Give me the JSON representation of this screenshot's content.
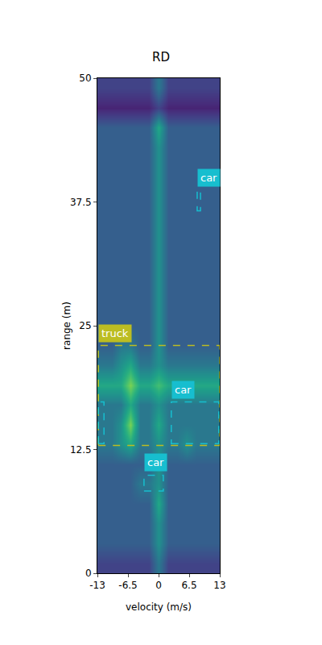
{
  "chart_data": {
    "type": "heatmap",
    "title": "RD",
    "x_label": "velocity (m/s)",
    "y_label": "range (m)",
    "xlim": [
      -13,
      13
    ],
    "ylim": [
      0,
      50
    ],
    "xticks": [
      -13,
      -6.5,
      0,
      6.5,
      13
    ],
    "yticks": [
      0,
      12.5,
      25,
      37.5,
      50
    ],
    "grid": false,
    "zlim": [
      0,
      10
    ],
    "x": [
      -12,
      -10,
      -8,
      -6,
      -4,
      -2,
      0,
      2,
      4,
      6,
      8,
      10,
      12
    ],
    "y": [
      1,
      3,
      5,
      7,
      9,
      11,
      13,
      15,
      17,
      19,
      21,
      23,
      25,
      27,
      29,
      31,
      33,
      35,
      37,
      39,
      41,
      43,
      45,
      47,
      49
    ],
    "z": [
      [
        2,
        2,
        2,
        2,
        2,
        2,
        4,
        2,
        2,
        2,
        2,
        2,
        2
      ],
      [
        3,
        3,
        3,
        3,
        3,
        3,
        5,
        3,
        3,
        3,
        3,
        3,
        3
      ],
      [
        3,
        3,
        3,
        3,
        3,
        3,
        5,
        3,
        3,
        3,
        3,
        3,
        3
      ],
      [
        3,
        3,
        3,
        3,
        3,
        3,
        6,
        3,
        3,
        3,
        3,
        3,
        3
      ],
      [
        3,
        3,
        3,
        3,
        4,
        4,
        5,
        3,
        3,
        3,
        3,
        3,
        3
      ],
      [
        3,
        3,
        3,
        3,
        3,
        3,
        5,
        3,
        3,
        3,
        3,
        3,
        3
      ],
      [
        4,
        4,
        5,
        6,
        4,
        4,
        5,
        4,
        4,
        5,
        4,
        4,
        4
      ],
      [
        4,
        4,
        5,
        8,
        4,
        4,
        6,
        4,
        4,
        4,
        4,
        4,
        4
      ],
      [
        4,
        4,
        4,
        6,
        4,
        4,
        5,
        4,
        4,
        4,
        4,
        4,
        4
      ],
      [
        6,
        6,
        6,
        8,
        6,
        6,
        7,
        6,
        6,
        6,
        6,
        6,
        6
      ],
      [
        4,
        4,
        5,
        6,
        4,
        4,
        5,
        4,
        4,
        4,
        4,
        4,
        4
      ],
      [
        3,
        3,
        4,
        4,
        3,
        3,
        5,
        3,
        3,
        3,
        3,
        3,
        3
      ],
      [
        3,
        3,
        3,
        3,
        3,
        3,
        5,
        3,
        3,
        3,
        3,
        3,
        3
      ],
      [
        3,
        3,
        3,
        3,
        3,
        3,
        5,
        3,
        3,
        3,
        3,
        3,
        3
      ],
      [
        3,
        3,
        3,
        3,
        3,
        3,
        5,
        3,
        3,
        3,
        3,
        3,
        3
      ],
      [
        3,
        3,
        3,
        3,
        3,
        3,
        5,
        3,
        3,
        3,
        3,
        3,
        3
      ],
      [
        3,
        3,
        3,
        3,
        3,
        3,
        5,
        3,
        3,
        3,
        3,
        3,
        3
      ],
      [
        3,
        3,
        3,
        3,
        3,
        3,
        5,
        3,
        3,
        3,
        3,
        3,
        3
      ],
      [
        3,
        3,
        3,
        3,
        3,
        3,
        5,
        3,
        3,
        3,
        3,
        3,
        3
      ],
      [
        3,
        3,
        3,
        3,
        3,
        3,
        5,
        3,
        3,
        3,
        3,
        3,
        3
      ],
      [
        3,
        3,
        3,
        3,
        3,
        3,
        5,
        3,
        3,
        3,
        3,
        3,
        3
      ],
      [
        3,
        3,
        3,
        3,
        3,
        3,
        5,
        3,
        3,
        3,
        3,
        3,
        3
      ],
      [
        3,
        3,
        3,
        3,
        3,
        3,
        6,
        3,
        3,
        3,
        3,
        3,
        3
      ],
      [
        1,
        1,
        1,
        1,
        1,
        1,
        2,
        1,
        1,
        1,
        1,
        1,
        1
      ],
      [
        2,
        2,
        2,
        2,
        2,
        2,
        4,
        2,
        2,
        2,
        2,
        2,
        2
      ]
    ],
    "line_style": "dashed",
    "boxes": [
      {
        "label": "car",
        "color": "#17becf",
        "x0": 8.2,
        "x1": 8.9,
        "y0": 36.6,
        "y1": 38.7
      },
      {
        "label": "truck",
        "color": "#bcbd22",
        "x0": -12.8,
        "x1": 13,
        "y0": 12.9,
        "y1": 23.0
      },
      {
        "label": "car",
        "color": "#17becf",
        "x0": 2.7,
        "x1": 12.8,
        "y0": 13.1,
        "y1": 17.3
      },
      {
        "color": "#17becf",
        "x0": -12.8,
        "x1": -11.6,
        "y0": 13.1,
        "y1": 17.3
      },
      {
        "label": "car",
        "color": "#17becf",
        "x0": -3.1,
        "x1": 1.0,
        "y0": 8.3,
        "y1": 9.9
      }
    ]
  }
}
